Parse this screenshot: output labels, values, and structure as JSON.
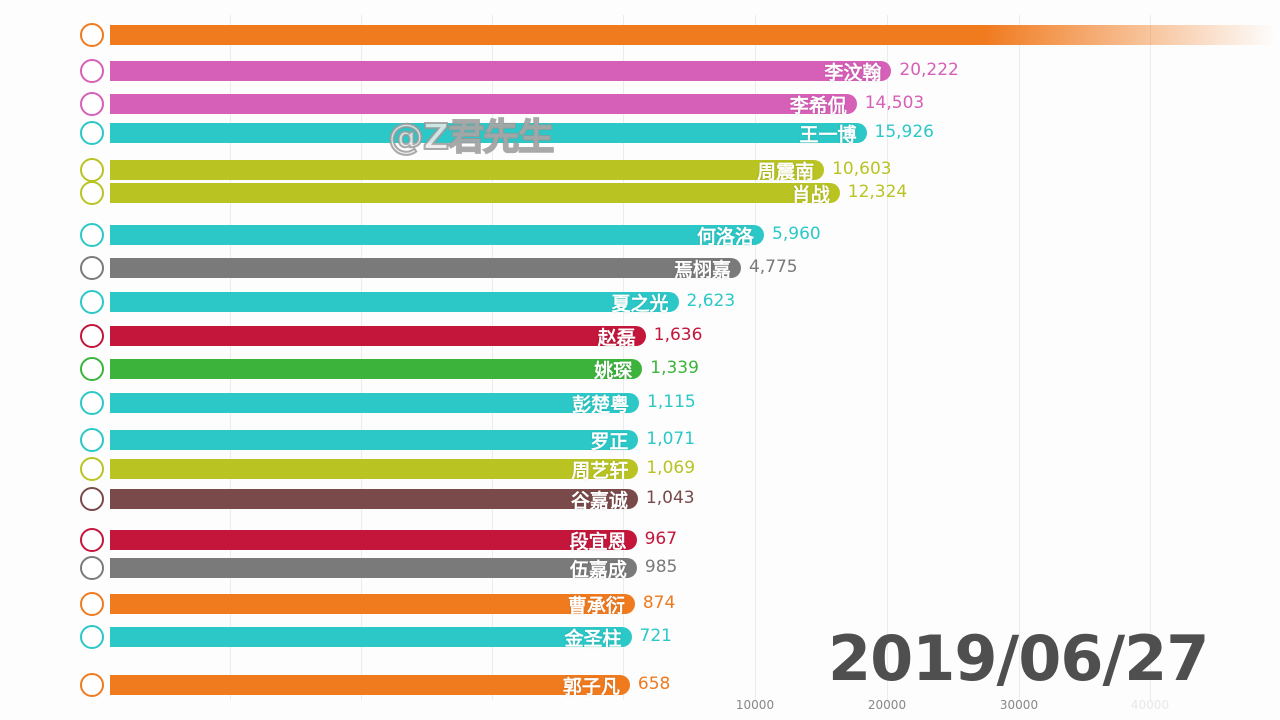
{
  "chart_data": {
    "type": "bar",
    "orientation": "horizontal",
    "date": "2019/06/27",
    "watermark": "@Z君先生",
    "x_ticks": [
      "10000",
      "20000",
      "30000",
      "40000"
    ],
    "grid": true,
    "series": [
      {
        "name": "",
        "value": null,
        "color": "#f07a1e"
      },
      {
        "name": "李汶翰",
        "value": 20222,
        "value_label": "20,222",
        "color": "#d65fb8"
      },
      {
        "name": "李希侃",
        "value": 14503,
        "value_label": "14,503",
        "color": "#d65fb8"
      },
      {
        "name": "王一博",
        "value": 15926,
        "value_label": "15,926",
        "color": "#2cc8c8"
      },
      {
        "name": "周震南",
        "value": 10603,
        "value_label": "10,603",
        "color": "#b9c423"
      },
      {
        "name": "肖战",
        "value": 12324,
        "value_label": "12,324",
        "color": "#b9c423"
      },
      {
        "name": "何洛洛",
        "value": 5960,
        "value_label": "5,960",
        "color": "#2cc8c8"
      },
      {
        "name": "焉栩嘉",
        "value": 4775,
        "value_label": "4,775",
        "color": "#7a7a7a"
      },
      {
        "name": "夏之光",
        "value": 2623,
        "value_label": "2,623",
        "color": "#2cc8c8"
      },
      {
        "name": "赵磊",
        "value": 1636,
        "value_label": "1,636",
        "color": "#c4153a"
      },
      {
        "name": "姚琛",
        "value": 1339,
        "value_label": "1,339",
        "color": "#3cb43c"
      },
      {
        "name": "彭楚粤",
        "value": 1115,
        "value_label": "1,115",
        "color": "#2cc8c8"
      },
      {
        "name": "罗正",
        "value": 1071,
        "value_label": "1,071",
        "color": "#2cc8c8"
      },
      {
        "name": "周艺轩",
        "value": 1069,
        "value_label": "1,069",
        "color": "#b9c423"
      },
      {
        "name": "谷嘉诚",
        "value": 1043,
        "value_label": "1,043",
        "color": "#7a4a4a"
      },
      {
        "name": "段宜恩",
        "value": 967,
        "value_label": "967",
        "color": "#c4153a"
      },
      {
        "name": "伍嘉成",
        "value": 985,
        "value_label": "985",
        "color": "#7a7a7a"
      },
      {
        "name": "曹承衍",
        "value": 874,
        "value_label": "874",
        "color": "#f07a1e"
      },
      {
        "name": "金圣柱",
        "value": 721,
        "value_label": "721",
        "color": "#2cc8c8"
      },
      {
        "name": "郭子凡",
        "value": 658,
        "value_label": "658",
        "color": "#f07a1e"
      }
    ]
  }
}
